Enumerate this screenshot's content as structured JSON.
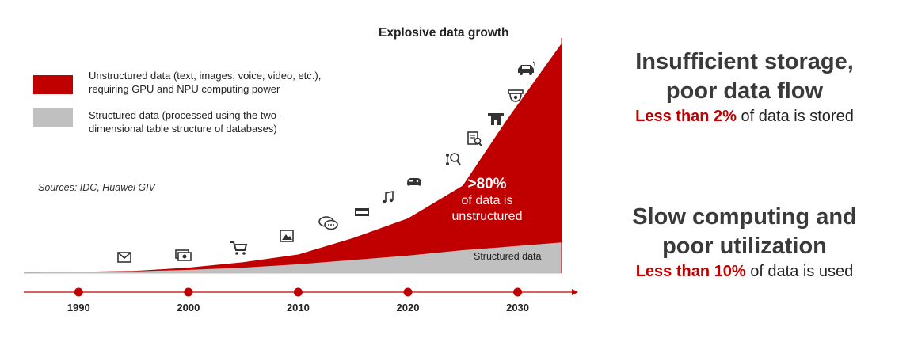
{
  "chart_data": {
    "type": "area",
    "title": "Explosive data growth",
    "x_ticks": [
      "1990",
      "2000",
      "2010",
      "2020",
      "2030"
    ],
    "series": [
      {
        "name": "Unstructured data (text, images, voice, video, etc.), requiring GPU and NPU computing power",
        "color": "#c00000",
        "x": [
          1985,
          1995,
          2000,
          2005,
          2010,
          2015,
          2020,
          2025,
          2029,
          2034
        ],
        "y": [
          0.5,
          2,
          5,
          10,
          17,
          32,
          50,
          80,
          140,
          210
        ]
      },
      {
        "name": "Structured data (processed using the two-dimensional table structure of databases)",
        "color": "#c0c0c0",
        "x": [
          1985,
          1995,
          2000,
          2005,
          2010,
          2015,
          2020,
          2025,
          2029,
          2034
        ],
        "y": [
          0.5,
          1.5,
          3,
          5,
          8,
          12,
          16,
          21,
          24,
          28
        ]
      }
    ],
    "ylim": [
      0,
      215
    ],
    "annotation": {
      "big": ">80%",
      "line1": "of data is",
      "line2": "unstructured"
    },
    "structured_label": "Structured data",
    "source": "Sources: IDC, Huawei GIV",
    "icons": [
      "envelope-icon",
      "money-icon",
      "shopping-cart-icon",
      "image-icon",
      "chat-icon",
      "film-icon",
      "music-icon",
      "gamepad-icon",
      "network-search-icon",
      "document-search-icon",
      "building-icon",
      "camera-icon",
      "car-icon"
    ]
  },
  "panels": {
    "storage": {
      "head1": "Insufficient storage,",
      "head2": "poor data flow",
      "highlight": "Less than 2%",
      "rest": " of data is stored"
    },
    "computing": {
      "head1": "Slow computing and",
      "head2": "poor utilization",
      "highlight": "Less than 10%",
      "rest": " of data is used"
    }
  },
  "colors": {
    "accent": "#c00000",
    "structured": "#c0c0c0"
  }
}
